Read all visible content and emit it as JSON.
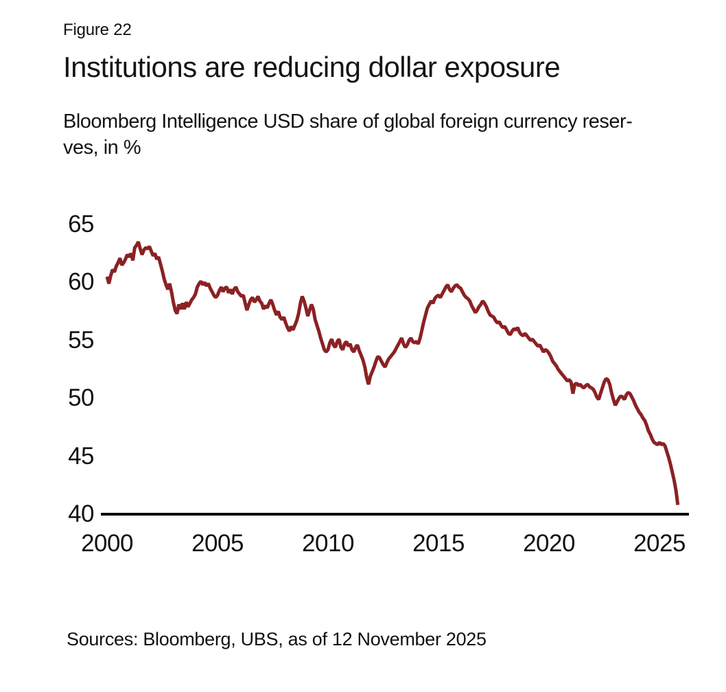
{
  "figure_label": "Figure 22",
  "title": "Institutions are reducing dollar exposure",
  "subtitle_lines": [
    "Bloomberg Intelligence USD share of global foreign currency reser-",
    "ves, in %"
  ],
  "source_note": "Sources: Bloomberg, UBS, as of 12 November 2025",
  "colors": {
    "line": "#8b2124",
    "axis": "#000000",
    "text": "#111111",
    "background": "#ffffff"
  },
  "chart_data": {
    "type": "line",
    "title": "Institutions are reducing dollar exposure",
    "subtitle": "Bloomberg Intelligence USD share of global foreign currency reserves, in %",
    "xlabel": "",
    "ylabel": "USD share of global foreign currency reserves, %",
    "x_ticks": [
      2000,
      2005,
      2010,
      2015,
      2020,
      2025
    ],
    "y_ticks": [
      65,
      60,
      55,
      50,
      45,
      40
    ],
    "xlim": [
      2000,
      2026.3
    ],
    "ylim": [
      40,
      65.5
    ],
    "grid": false,
    "legend": "none",
    "series": [
      {
        "name": "USD share of global FX reserves (%)",
        "frequency": "monthly",
        "start": "2000-01",
        "end": "2025-11",
        "values": [
          60.5,
          59.9,
          60.6,
          61.1,
          60.9,
          61.4,
          61.7,
          62.1,
          61.5,
          61.7,
          62.0,
          62.4,
          62.2,
          62.5,
          61.9,
          63.0,
          63.2,
          63.5,
          62.9,
          62.4,
          62.8,
          63.0,
          62.9,
          63.1,
          62.7,
          62.3,
          62.5,
          62.0,
          62.2,
          61.6,
          61.0,
          60.3,
          59.8,
          59.4,
          59.9,
          59.2,
          58.3,
          57.6,
          57.3,
          58.1,
          57.7,
          58.2,
          57.7,
          58.3,
          57.9,
          58.2,
          58.5,
          58.7,
          59.0,
          59.6,
          59.9,
          60.1,
          59.8,
          60.0,
          59.7,
          59.9,
          59.5,
          59.2,
          58.9,
          58.7,
          58.9,
          59.3,
          59.6,
          59.2,
          59.5,
          59.6,
          59.1,
          59.4,
          59.0,
          59.4,
          59.6,
          59.2,
          59.0,
          58.8,
          58.9,
          58.2,
          57.6,
          58.1,
          58.5,
          58.7,
          58.3,
          58.5,
          58.8,
          58.4,
          58.2,
          57.7,
          58.0,
          57.8,
          58.2,
          58.5,
          58.1,
          57.6,
          57.2,
          57.5,
          57.0,
          56.8,
          57.0,
          56.5,
          56.1,
          55.8,
          56.2,
          55.9,
          56.3,
          56.7,
          57.3,
          58.2,
          58.8,
          58.4,
          57.8,
          57.1,
          57.6,
          58.1,
          57.7,
          56.8,
          56.3,
          55.8,
          55.2,
          54.7,
          54.2,
          54.0,
          54.2,
          54.8,
          55.1,
          54.6,
          54.4,
          54.9,
          55.1,
          54.4,
          54.2,
          54.7,
          54.9,
          54.5,
          54.7,
          54.2,
          54.0,
          54.4,
          54.6,
          54.1,
          53.7,
          53.3,
          52.7,
          51.8,
          51.2,
          51.9,
          52.3,
          52.7,
          53.2,
          53.6,
          53.5,
          53.2,
          52.9,
          52.7,
          53.1,
          53.4,
          53.6,
          53.8,
          54.0,
          54.3,
          54.6,
          54.9,
          55.2,
          54.7,
          54.4,
          54.6,
          55.0,
          55.2,
          54.9,
          54.8,
          54.9,
          54.7,
          55.2,
          55.9,
          56.6,
          57.2,
          57.8,
          58.1,
          58.4,
          58.2,
          58.6,
          58.8,
          58.9,
          58.7,
          59.0,
          59.3,
          59.6,
          59.8,
          59.4,
          59.2,
          59.5,
          59.7,
          59.8,
          59.6,
          59.5,
          59.2,
          58.9,
          58.7,
          58.6,
          58.4,
          58.0,
          57.7,
          57.4,
          57.6,
          57.9,
          58.1,
          58.4,
          58.2,
          57.9,
          57.5,
          57.2,
          57.1,
          57.0,
          56.7,
          56.5,
          56.6,
          56.3,
          56.1,
          56.2,
          55.9,
          55.6,
          55.5,
          55.8,
          56.0,
          55.9,
          56.1,
          55.7,
          55.5,
          55.4,
          55.6,
          55.4,
          55.2,
          55.0,
          55.1,
          54.9,
          54.7,
          54.5,
          54.6,
          54.3,
          54.0,
          54.2,
          54.1,
          53.9,
          53.6,
          53.2,
          53.0,
          52.8,
          52.5,
          52.3,
          52.1,
          51.9,
          51.7,
          51.5,
          51.6,
          51.4,
          50.4,
          51.2,
          51.3,
          51.1,
          51.2,
          51.0,
          50.9,
          51.1,
          51.2,
          51.0,
          50.9,
          50.8,
          50.5,
          50.1,
          49.9,
          50.4,
          50.9,
          51.4,
          51.7,
          51.6,
          51.2,
          50.5,
          49.9,
          49.4,
          49.7,
          50.0,
          50.2,
          50.1,
          49.9,
          50.3,
          50.5,
          50.4,
          50.1,
          49.8,
          49.4,
          49.1,
          48.8,
          48.6,
          48.3,
          48.1,
          47.7,
          47.2,
          46.9,
          46.5,
          46.2,
          46.1,
          46.0,
          46.2,
          46.0,
          46.1,
          45.9,
          45.4,
          44.9,
          44.3,
          43.6,
          42.9,
          42.0,
          40.8
        ]
      }
    ]
  }
}
